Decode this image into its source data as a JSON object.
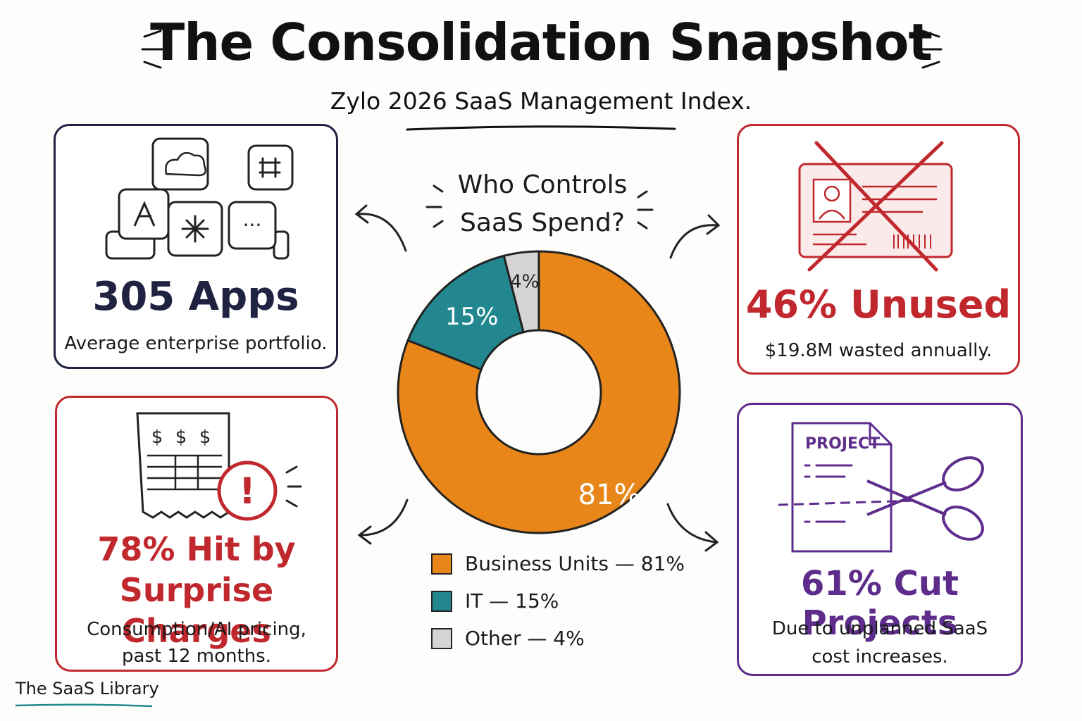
{
  "title": "The Consolidation Snapshot",
  "subtitle": "Zylo 2026 SaaS Management Index.",
  "center": {
    "question_line1": "Who Controls",
    "question_line2": "SaaS Spend?"
  },
  "chart_data": {
    "type": "pie",
    "donut": true,
    "title": "Who Controls SaaS Spend?",
    "slices": [
      {
        "label": "Business Units",
        "value": 81,
        "display": "81%",
        "color": "#e8861a"
      },
      {
        "label": "IT",
        "value": 15,
        "display": "15%",
        "color": "#22878f"
      },
      {
        "label": "Other",
        "value": 4,
        "display": "4%",
        "color": "#d4d4d4"
      }
    ],
    "legend": [
      "Business Units — 81%",
      "IT — 15%",
      "Other — 4%"
    ]
  },
  "cards": {
    "apps": {
      "stat": "305 Apps",
      "desc": "Average enterprise portfolio.",
      "color": "#1f2240"
    },
    "unused": {
      "stat": "46% Unused",
      "desc": "$19.8M wasted annually.",
      "color": "#c0282d"
    },
    "surprise": {
      "stat_line1": "78% Hit by",
      "stat_line2": "Surprise Charges",
      "desc_line1": "Consumption/AI pricing,",
      "desc_line2": "past 12 months.",
      "color": "#c0282d"
    },
    "projects": {
      "stat": "61% Cut Projects",
      "desc_line1": "Due to unplanned SaaS",
      "desc_line2": "cost increases.",
      "color": "#5e2d8c",
      "icon_label": "PROJECT"
    }
  },
  "icons": {
    "receipt_symbols": [
      "$",
      "$",
      "$"
    ],
    "alert_symbol": "!",
    "chat_symbol": "···"
  },
  "footer": "The SaaS Library"
}
